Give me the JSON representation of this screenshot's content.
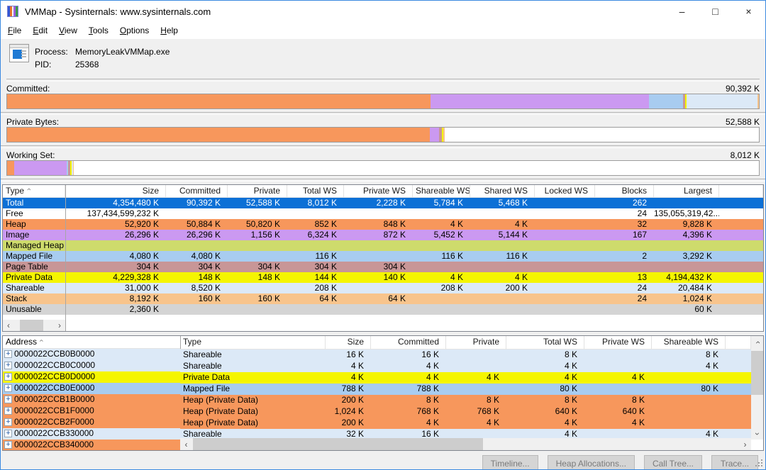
{
  "window": {
    "title": "VMMap - Sysinternals: www.sysinternals.com",
    "minimize_glyph": "–",
    "maximize_glyph": "□",
    "close_glyph": "×"
  },
  "menu": {
    "items": [
      {
        "label": "File",
        "underline": 0
      },
      {
        "label": "Edit",
        "underline": 0
      },
      {
        "label": "View",
        "underline": 0
      },
      {
        "label": "Tools",
        "underline": 0
      },
      {
        "label": "Options",
        "underline": 0
      },
      {
        "label": "Help",
        "underline": 0
      }
    ]
  },
  "process": {
    "process_label": "Process:",
    "process_value": "MemoryLeakVMMap.exe",
    "pid_label": "PID:",
    "pid_value": "25368"
  },
  "type_colors": {
    "selected": "#0c70d6",
    "free": "#ffffff",
    "heap": "#f7975c",
    "image": "#cb99f1",
    "managed_heap": "#cedb6c",
    "mapped_file": "#a8ccf0",
    "page_table": "#c89697",
    "private_data": "#f5f500",
    "shareable": "#dce9f7",
    "stack": "#f8c48c",
    "unusable": "#d4d4d4"
  },
  "bars": [
    {
      "label": "Committed:",
      "value": "90,392 K",
      "segments": [
        {
          "type": "heap",
          "pct": 56.29
        },
        {
          "type": "image",
          "pct": 29.09
        },
        {
          "type": "mapped_file",
          "pct": 4.51
        },
        {
          "type": "page_table",
          "pct": 0.34
        },
        {
          "type": "private_data",
          "pct": 0.16
        },
        {
          "type": "shareable",
          "pct": 9.43
        },
        {
          "type": "stack",
          "pct": 0.18
        }
      ]
    },
    {
      "label": "Private Bytes:",
      "value": "52,588 K",
      "segments": [
        {
          "type": "heap",
          "pct": 56.22
        },
        {
          "type": "image",
          "pct": 1.28
        },
        {
          "type": "page_table",
          "pct": 0.34
        },
        {
          "type": "private_data",
          "pct": 0.16
        },
        {
          "type": "stack",
          "pct": 0.18
        }
      ]
    },
    {
      "label": "Working Set:",
      "value": "8,012 K",
      "segments": [
        {
          "type": "heap",
          "pct": 0.94
        },
        {
          "type": "image",
          "pct": 7.0
        },
        {
          "type": "mapped_file",
          "pct": 0.13
        },
        {
          "type": "page_table",
          "pct": 0.34
        },
        {
          "type": "private_data",
          "pct": 0.16
        },
        {
          "type": "shareable",
          "pct": 0.23
        },
        {
          "type": "stack",
          "pct": 0.07
        }
      ]
    }
  ],
  "summary_table": {
    "columns": [
      "Type",
      "Size",
      "Committed",
      "Private",
      "Total WS",
      "Private WS",
      "Shareable WS",
      "Shared WS",
      "Locked WS",
      "Blocks",
      "Largest"
    ],
    "sort_column": "Type",
    "rows": [
      {
        "type": "Total",
        "color": "selected",
        "cells": [
          "4,354,480 K",
          "90,392 K",
          "52,588 K",
          "8,012 K",
          "2,228 K",
          "5,784 K",
          "5,468 K",
          "",
          "262",
          ""
        ]
      },
      {
        "type": "Free",
        "color": "free",
        "cells": [
          "137,434,599,232 K",
          "",
          "",
          "",
          "",
          "",
          "",
          "",
          "24",
          "135,055,319,42..."
        ]
      },
      {
        "type": "Heap",
        "color": "heap",
        "cells": [
          "52,920 K",
          "50,884 K",
          "50,820 K",
          "852 K",
          "848 K",
          "4 K",
          "4 K",
          "",
          "32",
          "9,828 K"
        ]
      },
      {
        "type": "Image",
        "color": "image",
        "cells": [
          "26,296 K",
          "26,296 K",
          "1,156 K",
          "6,324 K",
          "872 K",
          "5,452 K",
          "5,144 K",
          "",
          "167",
          "4,396 K"
        ]
      },
      {
        "type": "Managed Heap",
        "color": "managed_heap",
        "cells": [
          "",
          "",
          "",
          "",
          "",
          "",
          "",
          "",
          "",
          ""
        ]
      },
      {
        "type": "Mapped File",
        "color": "mapped_file",
        "cells": [
          "4,080 K",
          "4,080 K",
          "",
          "116 K",
          "",
          "116 K",
          "116 K",
          "",
          "2",
          "3,292 K"
        ]
      },
      {
        "type": "Page Table",
        "color": "page_table",
        "cells": [
          "304 K",
          "304 K",
          "304 K",
          "304 K",
          "304 K",
          "",
          "",
          "",
          "",
          ""
        ]
      },
      {
        "type": "Private Data",
        "color": "private_data",
        "cells": [
          "4,229,328 K",
          "148 K",
          "148 K",
          "144 K",
          "140 K",
          "4 K",
          "4 K",
          "",
          "13",
          "4,194,432 K"
        ]
      },
      {
        "type": "Shareable",
        "color": "shareable",
        "cells": [
          "31,000 K",
          "8,520 K",
          "",
          "208 K",
          "",
          "208 K",
          "200 K",
          "",
          "24",
          "20,484 K"
        ]
      },
      {
        "type": "Stack",
        "color": "stack",
        "cells": [
          "8,192 K",
          "160 K",
          "160 K",
          "64 K",
          "64 K",
          "",
          "",
          "",
          "24",
          "1,024 K"
        ]
      },
      {
        "type": "Unusable",
        "color": "unusable",
        "cells": [
          "2,360 K",
          "",
          "",
          "",
          "",
          "",
          "",
          "",
          "",
          "60 K"
        ]
      }
    ]
  },
  "detail_table": {
    "columns": [
      "Address",
      "Type",
      "Size",
      "Committed",
      "Private",
      "Total WS",
      "Private WS",
      "Shareable WS"
    ],
    "sort_column": "Address",
    "expander_glyph": "+",
    "rows": [
      {
        "address": "0000022CCB0B0000",
        "color": "shareable",
        "cells": [
          "Shareable",
          "16 K",
          "16 K",
          "",
          "8 K",
          "",
          "8 K"
        ]
      },
      {
        "address": "0000022CCB0C0000",
        "color": "shareable",
        "cells": [
          "Shareable",
          "4 K",
          "4 K",
          "",
          "4 K",
          "",
          "4 K"
        ]
      },
      {
        "address": "0000022CCB0D0000",
        "color": "private_data",
        "cells": [
          "Private Data",
          "4 K",
          "4 K",
          "4 K",
          "4 K",
          "4 K",
          ""
        ]
      },
      {
        "address": "0000022CCB0E0000",
        "color": "mapped_file",
        "cells": [
          "Mapped File",
          "788 K",
          "788 K",
          "",
          "80 K",
          "",
          "80 K"
        ]
      },
      {
        "address": "0000022CCB1B0000",
        "color": "heap",
        "cells": [
          "Heap (Private Data)",
          "200 K",
          "8 K",
          "8 K",
          "8 K",
          "8 K",
          ""
        ]
      },
      {
        "address": "0000022CCB1F0000",
        "color": "heap",
        "cells": [
          "Heap (Private Data)",
          "1,024 K",
          "768 K",
          "768 K",
          "640 K",
          "640 K",
          ""
        ]
      },
      {
        "address": "0000022CCB2F0000",
        "color": "heap",
        "cells": [
          "Heap (Private Data)",
          "200 K",
          "4 K",
          "4 K",
          "4 K",
          "4 K",
          ""
        ]
      },
      {
        "address": "0000022CCB330000",
        "color": "shareable",
        "cells": [
          "Shareable",
          "32 K",
          "16 K",
          "",
          "4 K",
          "",
          "4 K"
        ]
      },
      {
        "address": "0000022CCB340000",
        "color": "heap",
        "cells": [
          "",
          "",
          "",
          "",
          "",
          "",
          ""
        ]
      }
    ]
  },
  "footer": {
    "buttons": [
      "Timeline...",
      "Heap Allocations...",
      "Call Tree...",
      "Trace..."
    ]
  }
}
